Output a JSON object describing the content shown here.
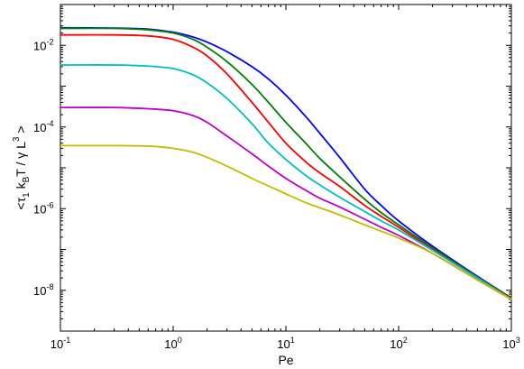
{
  "chart_data": {
    "type": "line",
    "xscale": "log",
    "yscale": "log",
    "xlim": [
      0.1,
      1000
    ],
    "ylim": [
      1e-09,
      0.1
    ],
    "x_ticks": [
      {
        "value": 0.1,
        "base": "10",
        "exp": "-1"
      },
      {
        "value": 1,
        "base": "10",
        "exp": "0"
      },
      {
        "value": 10,
        "base": "10",
        "exp": "1"
      },
      {
        "value": 100,
        "base": "10",
        "exp": "2"
      },
      {
        "value": 1000,
        "base": "10",
        "exp": "3"
      }
    ],
    "y_ticks": [
      {
        "value": 0.01,
        "base": "10",
        "exp": "-2"
      },
      {
        "value": 0.0001,
        "base": "10",
        "exp": "-4"
      },
      {
        "value": 1e-06,
        "base": "10",
        "exp": "-6"
      },
      {
        "value": 1e-08,
        "base": "10",
        "exp": "-8"
      }
    ],
    "xlabel": "Pe",
    "ylabel": {
      "open": "<",
      "tau": "τ",
      "tau_sub": "1",
      "k": " k",
      "k_sub": "B",
      "mid": "T / γ L",
      "L_sup": "3",
      "close": " >"
    },
    "grid": false,
    "series": [
      {
        "color": "#0000ff",
        "x": [
          0.1,
          0.3,
          0.6,
          1,
          1.5,
          2,
          3,
          5,
          7,
          10,
          15,
          20,
          30,
          50,
          70,
          100,
          200,
          500,
          1000
        ],
        "values": [
          0.027,
          0.0265,
          0.025,
          0.021,
          0.016,
          0.012,
          0.007,
          0.003,
          0.0015,
          0.0006,
          0.00018,
          7e-05,
          1.8e-05,
          3e-06,
          1.2e-06,
          5e-07,
          1.2e-07,
          2.2e-08,
          6.5e-09
        ]
      },
      {
        "color": "#007f00",
        "x": [
          0.1,
          0.3,
          0.6,
          1,
          1.5,
          2,
          3,
          5,
          7,
          10,
          15,
          20,
          30,
          50,
          70,
          100,
          200,
          500,
          1000
        ],
        "values": [
          0.026,
          0.026,
          0.024,
          0.02,
          0.014,
          0.009,
          0.004,
          0.0011,
          0.0004,
          0.00013,
          4e-05,
          1.7e-05,
          6e-06,
          1.7e-06,
          8e-07,
          4e-07,
          1.1e-07,
          2.1e-08,
          6.5e-09
        ]
      },
      {
        "color": "#ff0000",
        "x": [
          0.1,
          0.3,
          0.6,
          1,
          1.5,
          2,
          3,
          5,
          7,
          10,
          15,
          20,
          30,
          50,
          70,
          100,
          200,
          500,
          1000
        ],
        "values": [
          0.018,
          0.018,
          0.017,
          0.014,
          0.009,
          0.0055,
          0.002,
          0.0004,
          0.00013,
          4e-05,
          1.4e-05,
          7.5e-06,
          3.5e-06,
          1.2e-06,
          6.5e-07,
          3.5e-07,
          1e-07,
          2e-08,
          6.2e-09
        ]
      },
      {
        "color": "#00bfbf",
        "x": [
          0.1,
          0.3,
          0.6,
          1,
          1.5,
          2,
          3,
          5,
          7,
          10,
          15,
          20,
          30,
          50,
          70,
          100,
          200,
          500,
          1000
        ],
        "values": [
          0.0033,
          0.0033,
          0.0031,
          0.0027,
          0.0019,
          0.0012,
          0.0005,
          0.00012,
          4e-05,
          1.6e-05,
          6.5e-06,
          3.8e-06,
          1.9e-06,
          8.5e-07,
          5e-07,
          3e-07,
          9.5e-08,
          2e-08,
          6e-09
        ]
      },
      {
        "color": "#bf00bf",
        "x": [
          0.1,
          0.3,
          0.6,
          1,
          1.5,
          2,
          3,
          5,
          7,
          10,
          15,
          20,
          30,
          50,
          70,
          100,
          200,
          500,
          1000
        ],
        "values": [
          0.0003,
          0.0003,
          0.00028,
          0.00025,
          0.00019,
          0.00013,
          6e-05,
          2.2e-05,
          1.1e-05,
          5.5e-06,
          2.8e-06,
          1.8e-06,
          1.1e-06,
          5.5e-07,
          3.5e-07,
          2.2e-07,
          8e-08,
          1.8e-08,
          6e-09
        ]
      },
      {
        "color": "#bfbf00",
        "x": [
          0.1,
          0.3,
          0.6,
          1,
          1.5,
          2,
          3,
          5,
          7,
          10,
          15,
          20,
          30,
          50,
          70,
          100,
          200,
          500,
          1000
        ],
        "values": [
          3.5e-05,
          3.5e-05,
          3.4e-05,
          3e-05,
          2.4e-05,
          1.8e-05,
          1.1e-05,
          5.5e-06,
          3.6e-06,
          2.3e-06,
          1.4e-06,
          1.05e-06,
          7e-07,
          4e-07,
          2.8e-07,
          1.9e-07,
          8e-08,
          1.8e-08,
          6e-09
        ]
      }
    ]
  }
}
